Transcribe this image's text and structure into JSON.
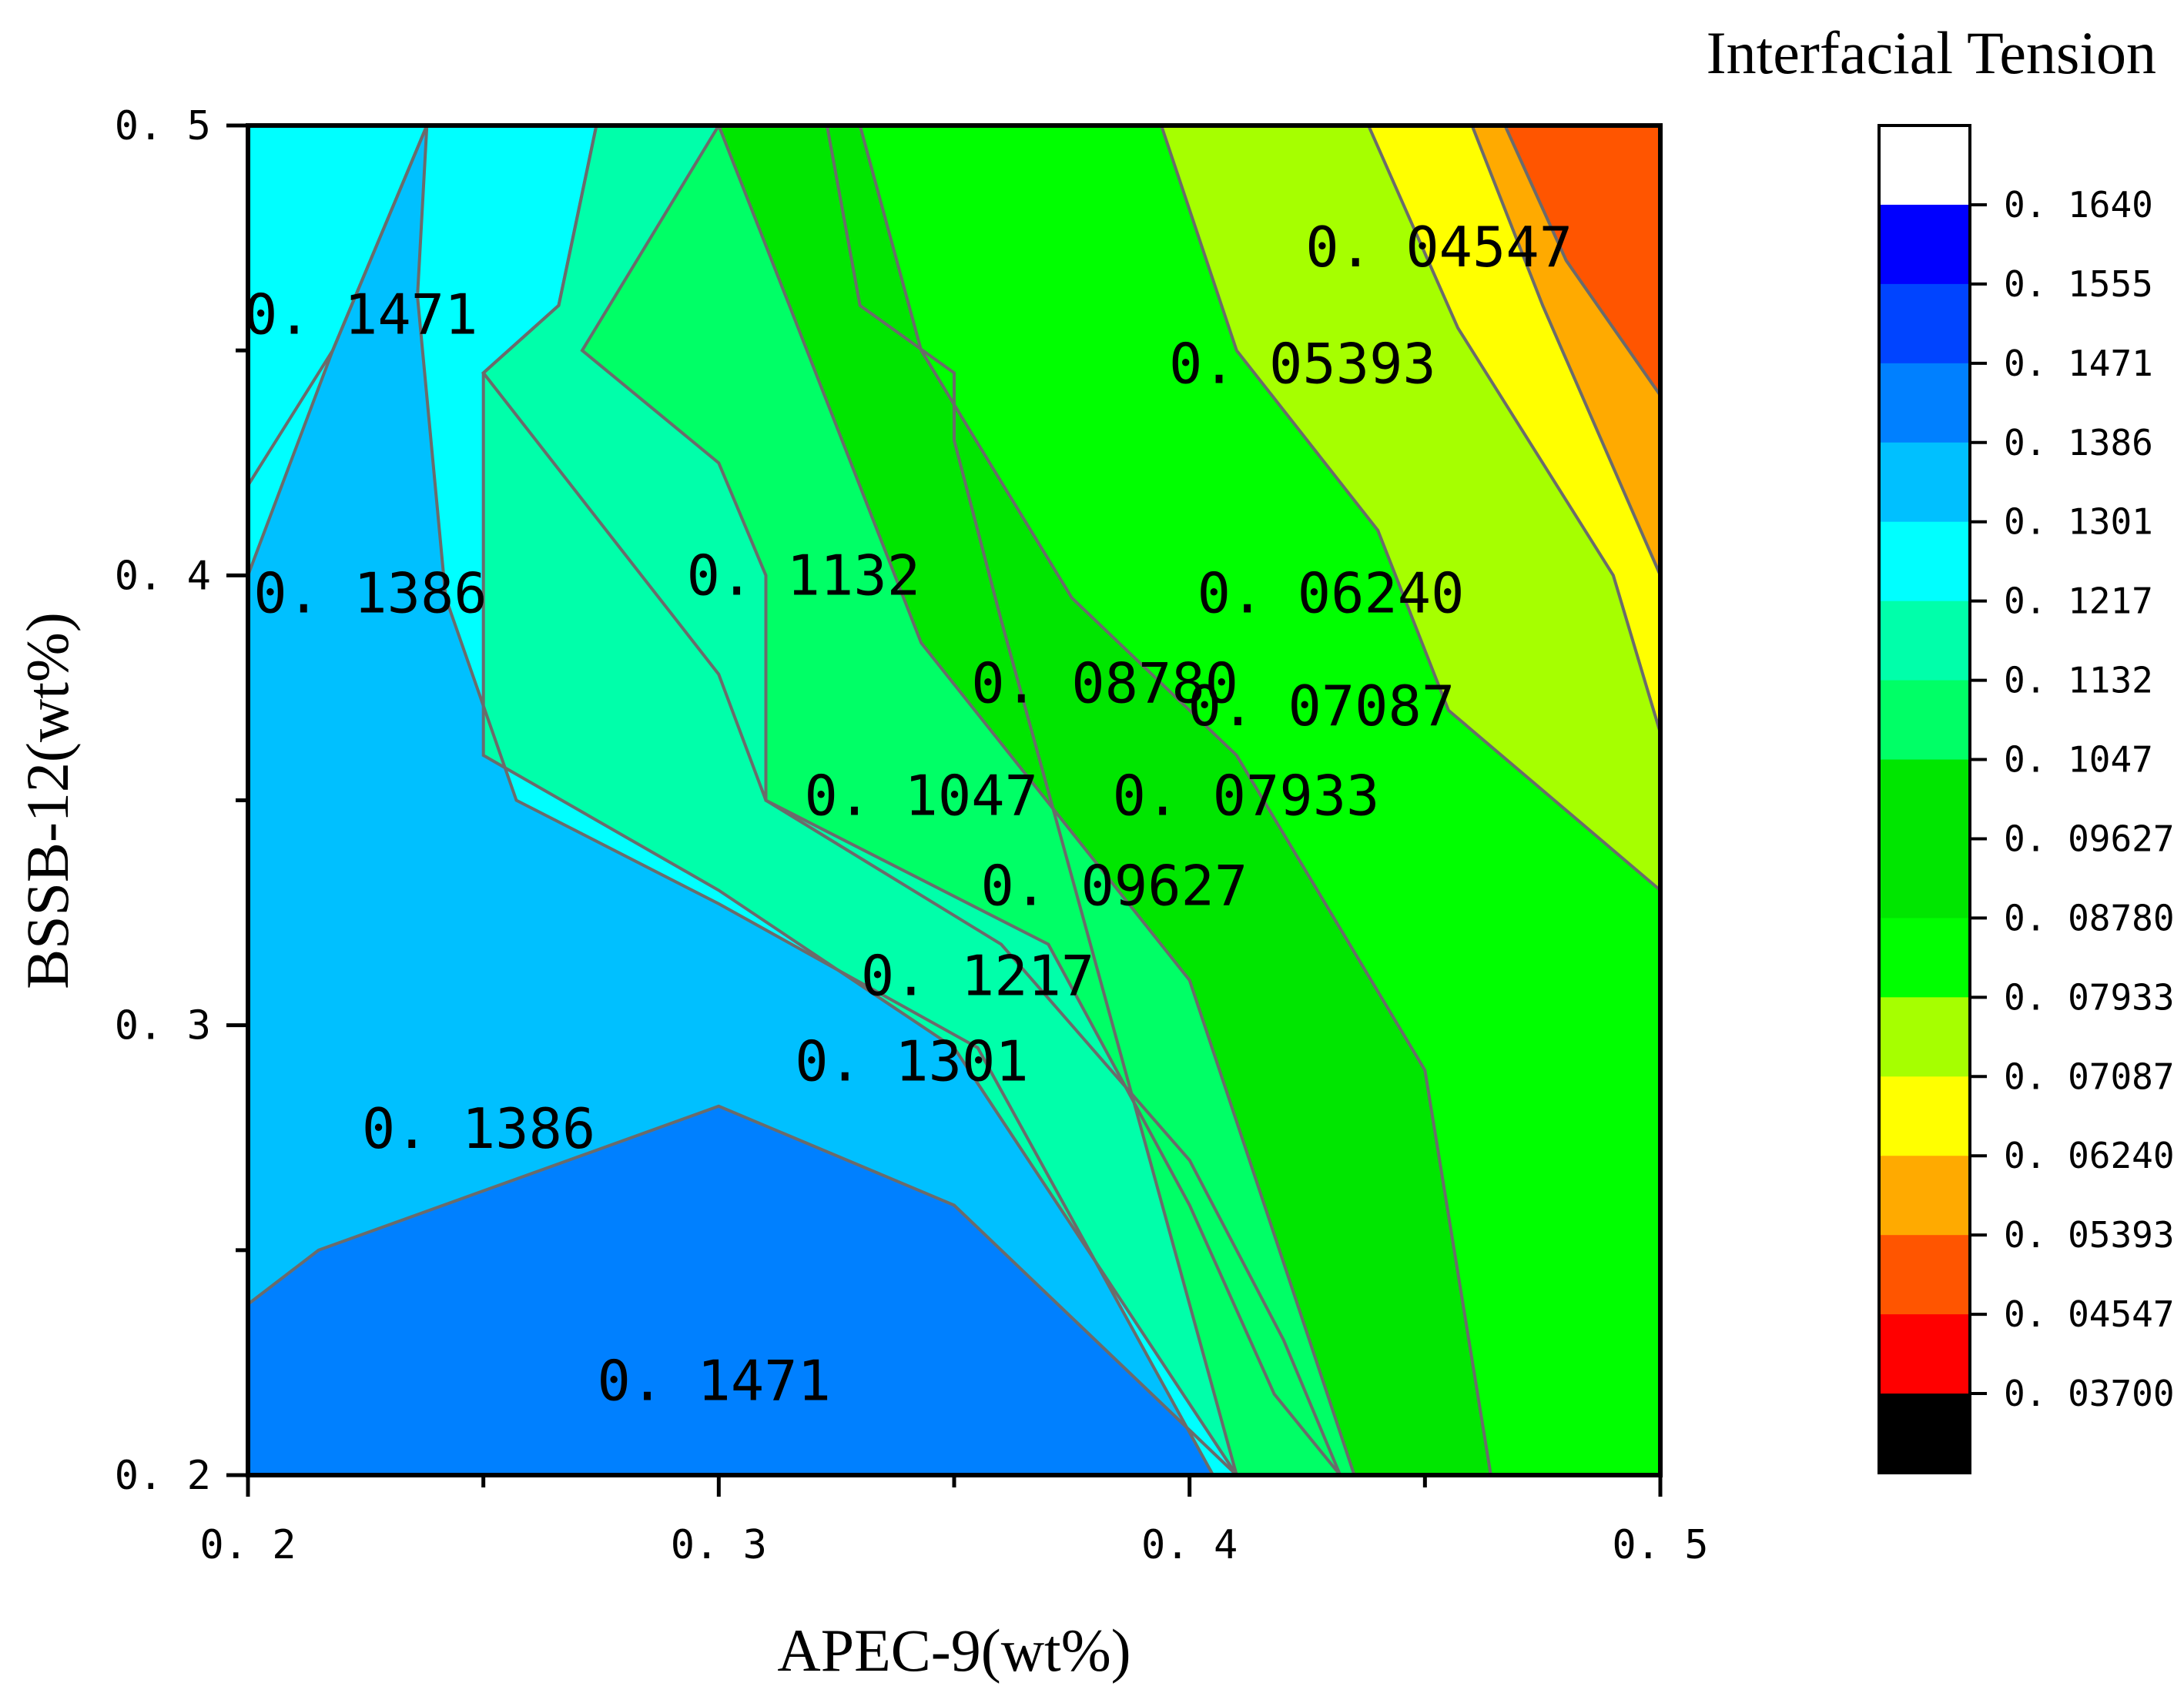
{
  "chart_data": {
    "type": "contour",
    "title": "Interfacial Tension",
    "xlabel": "APEC-9(wt%)",
    "ylabel": "BSSB-12(wt%)",
    "xlim": [
      0.2,
      0.5
    ],
    "ylim": [
      0.2,
      0.5
    ],
    "xticks": [
      {
        "value": 0.2,
        "label": "0. 2"
      },
      {
        "value": 0.3,
        "label": "0. 3"
      },
      {
        "value": 0.4,
        "label": "0. 4"
      },
      {
        "value": 0.5,
        "label": "0. 5"
      }
    ],
    "yticks": [
      {
        "value": 0.2,
        "label": "0. 2"
      },
      {
        "value": 0.3,
        "label": "0. 3"
      },
      {
        "value": 0.4,
        "label": "0. 4"
      },
      {
        "value": 0.5,
        "label": "0. 5"
      }
    ],
    "levels": [
      {
        "value": 0.037,
        "label": "0. 03700",
        "color": "#000000"
      },
      {
        "value": 0.04547,
        "label": "0. 04547",
        "color": "#ff0000"
      },
      {
        "value": 0.05393,
        "label": "0. 05393",
        "color": "#ff5500"
      },
      {
        "value": 0.0624,
        "label": "0. 06240",
        "color": "#ffaa00"
      },
      {
        "value": 0.07087,
        "label": "0. 07087",
        "color": "#ffff00"
      },
      {
        "value": 0.07933,
        "label": "0. 07933",
        "color": "#a6ff00"
      },
      {
        "value": 0.0878,
        "label": "0. 08780",
        "color": "#00ff00"
      },
      {
        "value": 0.09627,
        "label": "0. 09627",
        "color": "#00e600"
      },
      {
        "value": 0.1047,
        "label": "0. 1047",
        "color": "#00e600"
      },
      {
        "value": 0.1132,
        "label": "0. 1132",
        "color": "#00ff66"
      },
      {
        "value": 0.1217,
        "label": "0. 1217",
        "color": "#00ffaa"
      },
      {
        "value": 0.1301,
        "label": "0. 1301",
        "color": "#00ffff"
      },
      {
        "value": 0.1386,
        "label": "0. 1386",
        "color": "#00c0ff"
      },
      {
        "value": 0.1471,
        "label": "0. 1471",
        "color": "#0080ff"
      },
      {
        "value": 0.1555,
        "label": "0. 1555",
        "color": "#0044ff"
      },
      {
        "value": 0.164,
        "label": "0. 1640",
        "color": "#0000ff"
      }
    ],
    "legend_top_color": "#ffffff",
    "contour_labels": [
      {
        "text": "0. 04547",
        "x": 0.453,
        "y": 0.473
      },
      {
        "text": "0. 05393",
        "x": 0.424,
        "y": 0.447
      },
      {
        "text": "0. 1471",
        "x": 0.224,
        "y": 0.458
      },
      {
        "text": "0. 1386",
        "x": 0.226,
        "y": 0.396
      },
      {
        "text": "0. 1132",
        "x": 0.318,
        "y": 0.4
      },
      {
        "text": "0. 06240",
        "x": 0.43,
        "y": 0.396
      },
      {
        "text": "0. 08780",
        "x": 0.382,
        "y": 0.376
      },
      {
        "text": "0. 07087",
        "x": 0.428,
        "y": 0.371
      },
      {
        "text": "0. 1047",
        "x": 0.343,
        "y": 0.351
      },
      {
        "text": "0. 07933",
        "x": 0.412,
        "y": 0.351
      },
      {
        "text": "0. 09627",
        "x": 0.384,
        "y": 0.331
      },
      {
        "text": "0. 1217",
        "x": 0.355,
        "y": 0.311
      },
      {
        "text": "0. 1301",
        "x": 0.341,
        "y": 0.292
      },
      {
        "text": "0. 1386",
        "x": 0.249,
        "y": 0.277
      },
      {
        "text": "0. 1471",
        "x": 0.299,
        "y": 0.221
      }
    ],
    "bands": [
      {
        "level": 0.1471,
        "color": "#0080ff",
        "points": [
          [
            0.2,
            0.2
          ],
          [
            0.5,
            0.2
          ],
          [
            0.5,
            0.5
          ],
          [
            0.2,
            0.5
          ]
        ]
      },
      {
        "level": 0.1386,
        "color": "#00c0ff",
        "points": [
          [
            0.2,
            0.238
          ],
          [
            0.215,
            0.25
          ],
          [
            0.3,
            0.282
          ],
          [
            0.35,
            0.26
          ],
          [
            0.41,
            0.2
          ],
          [
            0.5,
            0.2
          ],
          [
            0.5,
            0.5
          ],
          [
            0.201,
            0.5
          ],
          [
            0.238,
            0.5
          ],
          [
            0.218,
            0.45
          ],
          [
            0.2,
            0.42
          ]
        ]
      },
      {
        "level": 0.1301,
        "color": "#00ffff",
        "points": [
          [
            0.2,
            0.358
          ],
          [
            0.2,
            0.5
          ],
          [
            0.238,
            0.5
          ],
          [
            0.218,
            0.45
          ],
          [
            0.2,
            0.4
          ]
        ]
      },
      {
        "level": 0.1301,
        "color": "#00ffff",
        "points": [
          [
            0.257,
            0.35
          ],
          [
            0.3,
            0.327
          ],
          [
            0.355,
            0.295
          ],
          [
            0.405,
            0.2
          ],
          [
            0.5,
            0.2
          ],
          [
            0.5,
            0.5
          ],
          [
            0.238,
            0.5
          ],
          [
            0.236,
            0.462
          ],
          [
            0.242,
            0.395
          ]
        ]
      },
      {
        "level": 0.1217,
        "color": "#00ffaa",
        "points": [
          [
            0.25,
            0.445
          ],
          [
            0.25,
            0.36
          ],
          [
            0.3,
            0.33
          ],
          [
            0.35,
            0.295
          ],
          [
            0.41,
            0.2
          ],
          [
            0.5,
            0.2
          ],
          [
            0.5,
            0.5
          ],
          [
            0.274,
            0.5
          ],
          [
            0.266,
            0.46
          ]
        ]
      },
      {
        "level": 0.1132,
        "color": "#00ff66",
        "points": [
          [
            0.35,
            0.445
          ],
          [
            0.35,
            0.43
          ],
          [
            0.36,
            0.39
          ],
          [
            0.41,
            0.2
          ],
          [
            0.5,
            0.2
          ],
          [
            0.5,
            0.5
          ],
          [
            0.323,
            0.5
          ],
          [
            0.33,
            0.46
          ]
        ]
      },
      {
        "level": 0.1132,
        "color": "#00ffaa",
        "points": [
          [
            0.25,
            0.445
          ],
          [
            0.3,
            0.378
          ],
          [
            0.31,
            0.35
          ],
          [
            0.36,
            0.318
          ],
          [
            0.4,
            0.27
          ],
          [
            0.42,
            0.23
          ],
          [
            0.432,
            0.2
          ],
          [
            0.5,
            0.2
          ],
          [
            0.5,
            0.5
          ],
          [
            0.274,
            0.5
          ],
          [
            0.266,
            0.46
          ]
        ]
      },
      {
        "level": 0.1047,
        "color": "#00ff66",
        "points": [
          [
            0.271,
            0.45
          ],
          [
            0.3,
            0.425
          ],
          [
            0.31,
            0.4
          ],
          [
            0.31,
            0.35
          ],
          [
            0.37,
            0.318
          ],
          [
            0.4,
            0.26
          ],
          [
            0.418,
            0.218
          ],
          [
            0.432,
            0.2
          ],
          [
            0.5,
            0.2
          ],
          [
            0.5,
            0.5
          ],
          [
            0.3,
            0.5
          ]
        ]
      },
      {
        "level": 0.09627,
        "color": "#00e600",
        "points": [
          [
            0.3,
            0.5
          ],
          [
            0.315,
            0.46
          ],
          [
            0.343,
            0.385
          ],
          [
            0.4,
            0.31
          ],
          [
            0.435,
            0.2
          ],
          [
            0.5,
            0.2
          ],
          [
            0.5,
            0.5
          ]
        ]
      },
      {
        "level": 0.0878,
        "color": "#00ff00",
        "points": [
          [
            0.33,
            0.5
          ],
          [
            0.343,
            0.45
          ],
          [
            0.375,
            0.395
          ],
          [
            0.41,
            0.36
          ],
          [
            0.45,
            0.29
          ],
          [
            0.464,
            0.2
          ],
          [
            0.5,
            0.2
          ],
          [
            0.5,
            0.5
          ]
        ]
      },
      {
        "level": 0.07933,
        "color": "#a6ff00",
        "points": [
          [
            0.394,
            0.5
          ],
          [
            0.41,
            0.45
          ],
          [
            0.44,
            0.41
          ],
          [
            0.455,
            0.37
          ],
          [
            0.5,
            0.33
          ],
          [
            0.5,
            0.5
          ]
        ]
      },
      {
        "level": 0.07087,
        "color": "#ffff00",
        "points": [
          [
            0.438,
            0.5
          ],
          [
            0.457,
            0.455
          ],
          [
            0.49,
            0.4
          ],
          [
            0.5,
            0.365
          ],
          [
            0.5,
            0.5
          ]
        ]
      },
      {
        "level": 0.0624,
        "color": "#ffaa00",
        "points": [
          [
            0.46,
            0.5
          ],
          [
            0.475,
            0.46
          ],
          [
            0.5,
            0.4
          ],
          [
            0.5,
            0.5
          ]
        ]
      },
      {
        "level": 0.05393,
        "color": "#ff5500",
        "points": [
          [
            0.467,
            0.5
          ],
          [
            0.48,
            0.47
          ],
          [
            0.5,
            0.44
          ],
          [
            0.5,
            0.5
          ]
        ]
      }
    ]
  }
}
